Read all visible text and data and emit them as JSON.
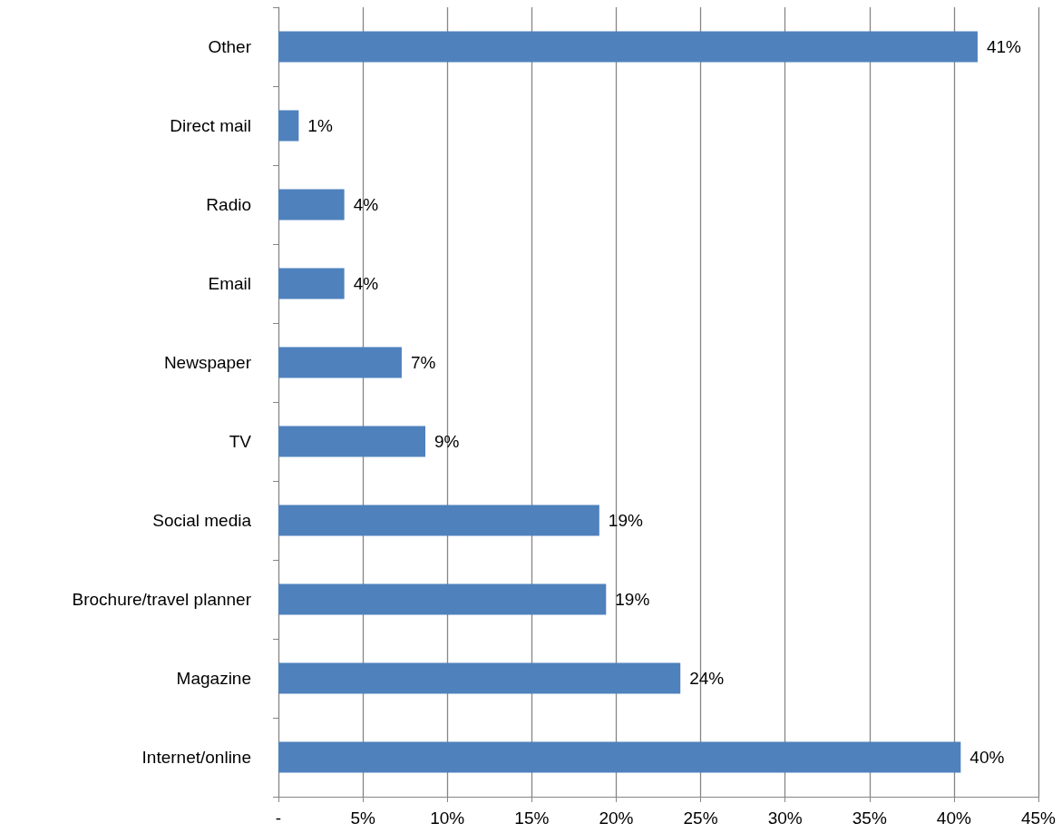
{
  "chart_data": {
    "type": "bar",
    "orientation": "horizontal",
    "categories": [
      "Other",
      "Direct mail",
      "Radio",
      "Email",
      "Newspaper",
      "TV",
      "Social media",
      "Brochure/travel planner",
      "Magazine",
      "Internet/online"
    ],
    "values": [
      41.4,
      1.2,
      3.9,
      3.9,
      7.3,
      8.7,
      19.0,
      19.4,
      23.8,
      40.4
    ],
    "value_labels": [
      "41%",
      "1%",
      "4%",
      "4%",
      "7%",
      "9%",
      "19%",
      "19%",
      "24%",
      "40%"
    ],
    "color": "#4f81bd",
    "xlim": [
      0,
      45
    ],
    "xticks": [
      {
        "value": 0,
        "label": "-"
      },
      {
        "value": 5,
        "label": "5%"
      },
      {
        "value": 10,
        "label": "10%"
      },
      {
        "value": 15,
        "label": "15%"
      },
      {
        "value": 20,
        "label": "20%"
      },
      {
        "value": 25,
        "label": "25%"
      },
      {
        "value": 30,
        "label": "30%"
      },
      {
        "value": 35,
        "label": "35%"
      },
      {
        "value": 40,
        "label": "40%"
      },
      {
        "value": 45,
        "label": "45%"
      }
    ],
    "grid": "x"
  }
}
